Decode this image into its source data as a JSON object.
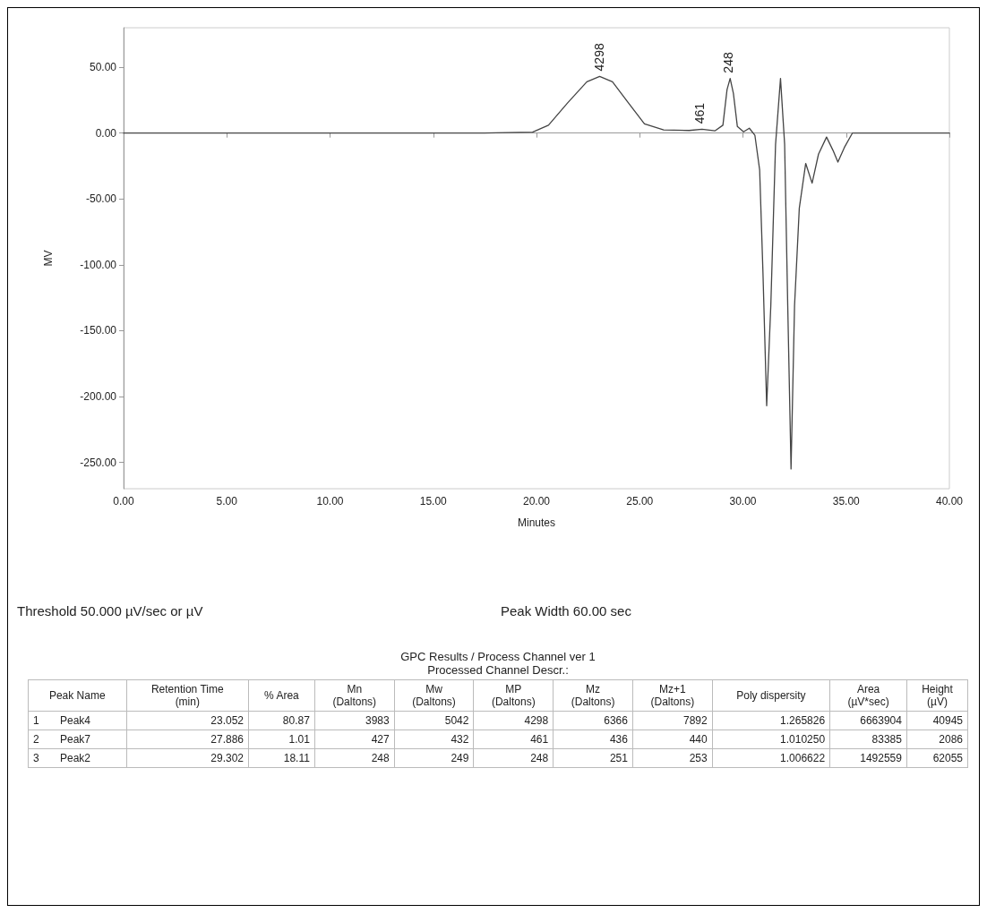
{
  "chart_data": [
    {
      "type": "line",
      "xlabel": "Minutes",
      "ylabel": "MV",
      "color": "#444444",
      "x": [
        0,
        17.48,
        19.81,
        20.58,
        21.51,
        22.44,
        23.06,
        23.68,
        24.45,
        25.23,
        26.16,
        27.4,
        28.02,
        28.64,
        29.03,
        29.23,
        29.38,
        29.54,
        29.73,
        30.03,
        30.31,
        30.58,
        30.81,
        30.97,
        31.15,
        31.35,
        31.58,
        31.82,
        32.02,
        32.17,
        32.33,
        32.5,
        32.73,
        33.04,
        33.35,
        33.66,
        34.05,
        34.36,
        34.6,
        34.91,
        35.3,
        40
      ],
      "values": [
        0,
        0,
        0.7,
        6,
        23,
        39,
        43,
        39,
        23,
        7,
        2.5,
        2,
        3,
        1.7,
        6,
        33,
        41.5,
        30,
        5,
        1,
        3.7,
        -1.7,
        -28,
        -106,
        -207,
        -131,
        -8.6,
        41.5,
        -8.6,
        -131,
        -255,
        -131,
        -57,
        -23,
        -38,
        -16,
        -3,
        -13,
        -22,
        -11,
        0,
        0
      ],
      "xlim": [
        0,
        40
      ],
      "ylim": [
        -270,
        80
      ],
      "xticks": [
        {
          "value": 0,
          "label": "0.00"
        },
        {
          "value": 5,
          "label": "5.00"
        },
        {
          "value": 10,
          "label": "10.00"
        },
        {
          "value": 15,
          "label": "15.00"
        },
        {
          "value": 20,
          "label": "20.00"
        },
        {
          "value": 25,
          "label": "25.00"
        },
        {
          "value": 30,
          "label": "30.00"
        },
        {
          "value": 35,
          "label": "35.00"
        },
        {
          "value": 40,
          "label": "40.00"
        }
      ],
      "yticks": [
        {
          "value": -250,
          "label": "-250.00"
        },
        {
          "value": -200,
          "label": "-200.00"
        },
        {
          "value": -150,
          "label": "-150.00"
        },
        {
          "value": -100,
          "label": "-100.00"
        },
        {
          "value": -50,
          "label": "-50.00"
        },
        {
          "value": 0,
          "label": "0.00"
        },
        {
          "value": 50,
          "label": "50.00"
        }
      ],
      "annotations": [
        {
          "text": "4298",
          "x": 23.052,
          "y": 43
        },
        {
          "text": "461",
          "x": 27.886,
          "y": 3
        },
        {
          "text": "248",
          "x": 29.302,
          "y": 41.5
        },
        "Threshold 50.000 µV/sec or µV",
        "Peak Width 60.00 sec"
      ]
    },
    {
      "type": "other",
      "title": "GPC Results / Process Channel ver 1",
      "subtitle": "Processed Channel Descr.:",
      "categories": [
        null,
        "Peak Name",
        "Retention Time\n(min)",
        "% Area",
        "Mn\n(Daltons)",
        "Mw\n(Daltons)",
        "MP\n(Daltons)",
        "Mz\n(Daltons)",
        "Mz+1\n(Daltons)",
        "Poly dispersity",
        "Area\n(µV*sec)",
        "Height\n(µV)"
      ],
      "annotations": [
        "1",
        "Peak4",
        "23.052",
        "80.87",
        "3983",
        "5042",
        "4298",
        "6366",
        "7892",
        "1.265826",
        "6663904",
        "40945",
        "2",
        "Peak7",
        "27.886",
        "1.01",
        "427",
        "432",
        "461",
        "436",
        "440",
        "1.010250",
        "83385",
        "2086",
        "3",
        "Peak2",
        "29.302",
        "18.11",
        "248",
        "249",
        "248",
        "251",
        "253",
        "1.006622",
        "1492559",
        "62055"
      ]
    }
  ]
}
